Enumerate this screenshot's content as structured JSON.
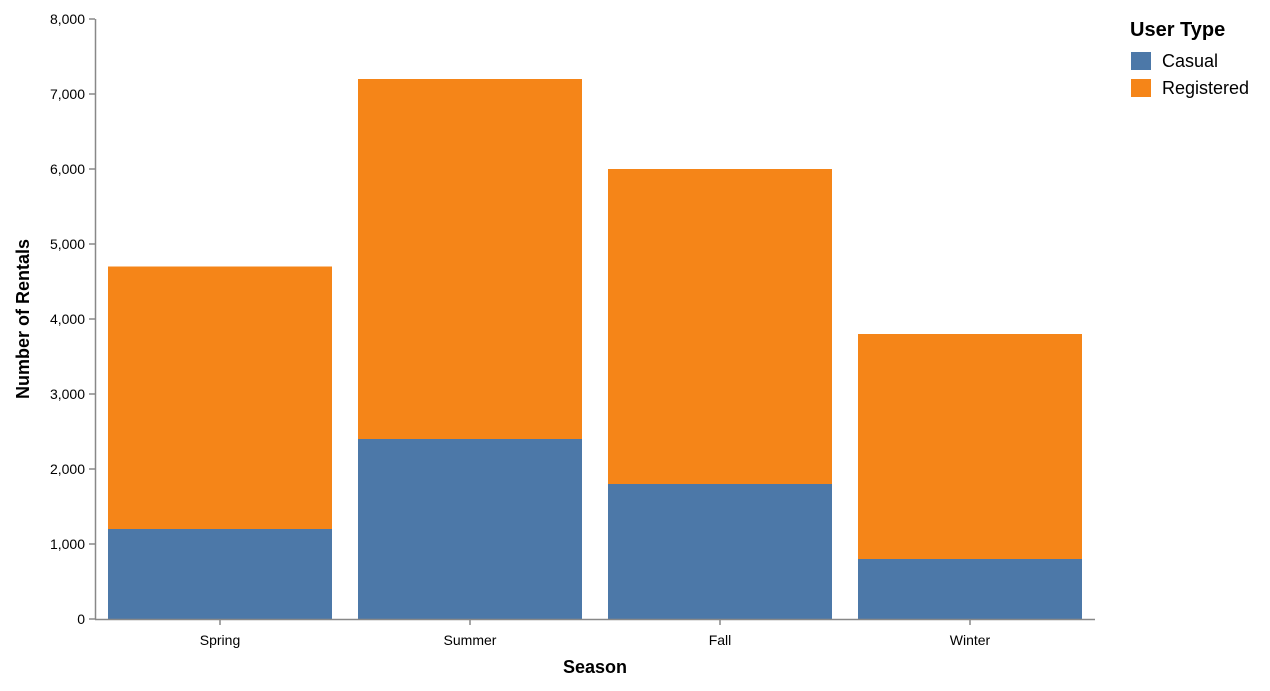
{
  "chart_data": {
    "type": "bar",
    "stacked": true,
    "categories": [
      "Spring",
      "Summer",
      "Fall",
      "Winter"
    ],
    "series": [
      {
        "name": "Casual",
        "values": [
          1200,
          2400,
          1800,
          800
        ],
        "color": "#4c78a8"
      },
      {
        "name": "Registered",
        "values": [
          3500,
          4800,
          4200,
          3000
        ],
        "color": "#f58518"
      }
    ],
    "xlabel": "Season",
    "ylabel": "Number of Rentals",
    "ylim": [
      0,
      8000
    ],
    "yticks": [
      0,
      1000,
      2000,
      3000,
      4000,
      5000,
      6000,
      7000,
      8000
    ],
    "ytick_labels": [
      "0",
      "1,000",
      "2,000",
      "3,000",
      "4,000",
      "5,000",
      "6,000",
      "7,000",
      "8,000"
    ],
    "grid": false,
    "legend": {
      "title": "User Type",
      "placement": "top-right"
    },
    "axis_color": "#888888"
  }
}
